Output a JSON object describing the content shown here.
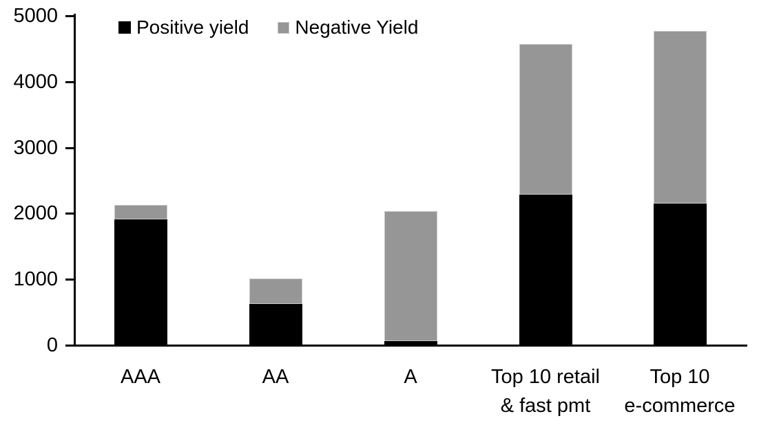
{
  "chart_data": {
    "type": "bar",
    "stacked": true,
    "title": "",
    "xlabel": "",
    "ylabel": "",
    "categories": [
      [
        "AAA"
      ],
      [
        "AA"
      ],
      [
        "A"
      ],
      [
        "Top 10 retail",
        "& fast pmt"
      ],
      [
        "Top 10",
        "e-commerce"
      ]
    ],
    "series": [
      {
        "name": "Positive yield",
        "color": "#000000",
        "values": [
          1900,
          620,
          50,
          2280,
          2140
        ]
      },
      {
        "name": "Negative Yield",
        "color": "#969696",
        "values": [
          220,
          380,
          1980,
          2280,
          2620
        ]
      }
    ],
    "totals": [
      2120,
      1000,
      2030,
      4560,
      4760
    ],
    "ylim": [
      0,
      5000
    ],
    "yticks": [
      0,
      1000,
      2000,
      3000,
      4000,
      5000
    ],
    "legend_position": "top",
    "grid": false,
    "axis_color": "#000000",
    "background_color": "#ffffff"
  }
}
